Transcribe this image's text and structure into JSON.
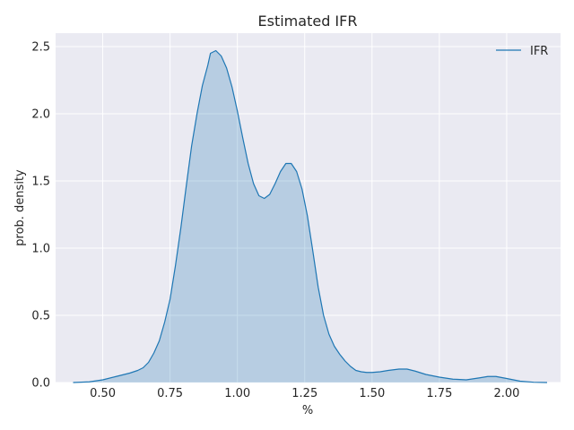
{
  "chart_data": {
    "type": "area",
    "title": "Estimated IFR",
    "xlabel": "%",
    "ylabel": "prob. density",
    "xlim": [
      0.325,
      2.2
    ],
    "ylim": [
      0,
      2.6
    ],
    "xticks": [
      0.5,
      0.75,
      1.0,
      1.25,
      1.5,
      1.75,
      2.0
    ],
    "xtick_labels": [
      "0.50",
      "0.75",
      "1.00",
      "1.25",
      "1.50",
      "1.75",
      "2.00"
    ],
    "yticks": [
      0.0,
      0.5,
      1.0,
      1.5,
      2.0,
      2.5
    ],
    "ytick_labels": [
      "0.0",
      "0.5",
      "1.0",
      "1.5",
      "2.0",
      "2.5"
    ],
    "grid": true,
    "legend_position": "top-right",
    "series": [
      {
        "name": "IFR",
        "color": "#1f77b4",
        "fill_color": "#1f77b4",
        "fill_opacity": 0.25,
        "x": [
          0.39,
          0.45,
          0.5,
          0.55,
          0.6,
          0.63,
          0.65,
          0.67,
          0.69,
          0.71,
          0.73,
          0.75,
          0.77,
          0.79,
          0.81,
          0.83,
          0.85,
          0.87,
          0.89,
          0.9,
          0.92,
          0.94,
          0.96,
          0.98,
          1.0,
          1.02,
          1.04,
          1.06,
          1.08,
          1.1,
          1.12,
          1.14,
          1.16,
          1.18,
          1.2,
          1.22,
          1.24,
          1.26,
          1.28,
          1.3,
          1.32,
          1.34,
          1.36,
          1.38,
          1.4,
          1.42,
          1.44,
          1.46,
          1.48,
          1.5,
          1.53,
          1.56,
          1.6,
          1.63,
          1.66,
          1.7,
          1.75,
          1.8,
          1.85,
          1.9,
          1.93,
          1.96,
          2.0,
          2.05,
          2.1,
          2.15
        ],
        "y": [
          0.0,
          0.005,
          0.02,
          0.045,
          0.07,
          0.09,
          0.11,
          0.15,
          0.22,
          0.31,
          0.45,
          0.62,
          0.87,
          1.15,
          1.46,
          1.76,
          2.0,
          2.21,
          2.36,
          2.45,
          2.47,
          2.43,
          2.34,
          2.2,
          2.02,
          1.82,
          1.63,
          1.48,
          1.39,
          1.37,
          1.4,
          1.48,
          1.57,
          1.63,
          1.63,
          1.57,
          1.44,
          1.24,
          0.98,
          0.71,
          0.5,
          0.36,
          0.27,
          0.21,
          0.16,
          0.12,
          0.09,
          0.08,
          0.075,
          0.075,
          0.08,
          0.09,
          0.1,
          0.1,
          0.085,
          0.06,
          0.04,
          0.025,
          0.02,
          0.035,
          0.045,
          0.045,
          0.03,
          0.01,
          0.002,
          0.0
        ]
      }
    ]
  }
}
